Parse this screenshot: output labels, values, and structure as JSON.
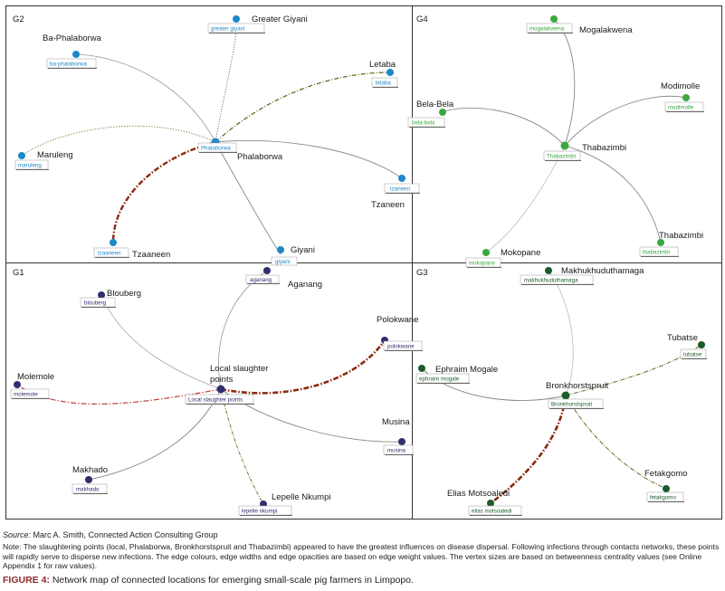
{
  "figure": {
    "quadrants": [
      {
        "id": "G2",
        "label": "G2"
      },
      {
        "id": "G4",
        "label": "G4"
      },
      {
        "id": "G1",
        "label": "G1"
      },
      {
        "id": "G3",
        "label": "G3"
      }
    ],
    "colors": {
      "g2_node": "#1e88c8",
      "g4_node": "#3aa840",
      "g1_node": "#2f2f6e",
      "g3_node": "#1c5c2c",
      "edge_gray": "#8a8a8a",
      "edge_brown": "#8b2a10",
      "edge_olive": "#6a6a20",
      "edge_red": "#c04040",
      "frame": "#333333"
    },
    "nodes": {
      "G2": [
        {
          "name": "Greater Giyani",
          "tag": "greater giyani"
        },
        {
          "name": "Ba-Phalaborwa",
          "tag": "ba-phalaborwa"
        },
        {
          "name": "Letaba",
          "tag": "letaba"
        },
        {
          "name": "Maruleng",
          "tag": "maruleng"
        },
        {
          "name": "Phalaborwa",
          "tag": "Phalaborwa"
        },
        {
          "name": "Tzaneen",
          "tag": "tzaneen"
        },
        {
          "name": "Tzaaneen",
          "tag": "tzaaneen"
        },
        {
          "name": "Giyani",
          "tag": "giyani"
        }
      ],
      "G4": [
        {
          "name": "Mogalakwena",
          "tag": "mogalakwena"
        },
        {
          "name": "Modimolle",
          "tag": "modimolle"
        },
        {
          "name": "Bela-Bela",
          "tag": "bela-bela"
        },
        {
          "name": "Thabazimbi",
          "tag": "Thabazimbi"
        },
        {
          "name": "Thabazimbi",
          "tag": "thabazimbi"
        },
        {
          "name": "Mokopane",
          "tag": "mokopane"
        }
      ],
      "G1": [
        {
          "name": "Aganang",
          "tag": "aganang"
        },
        {
          "name": "Blouberg",
          "tag": "blouberg"
        },
        {
          "name": "Polokwane",
          "tag": "polokwane"
        },
        {
          "name": "Local slaughter",
          "name2": "points",
          "tag": "Local slaughter points"
        },
        {
          "name": "Molemole",
          "tag": "molemole"
        },
        {
          "name": "Musina",
          "tag": "musina"
        },
        {
          "name": "Makhado",
          "tag": "makhado"
        },
        {
          "name": "Lepelle Nkumpi",
          "tag": "lepelle nkumpi"
        }
      ],
      "G3": [
        {
          "name": "Makhukhuduthamaga",
          "tag": "makhukhuduthamaga"
        },
        {
          "name": "Tubatse",
          "tag": "tubatse"
        },
        {
          "name": "Ephraim Mogale",
          "tag": "ephraim mogale"
        },
        {
          "name": "Bronkhorstspruit",
          "tag": "Bronkhorstspruit"
        },
        {
          "name": "Fetakgomo",
          "tag": "fetakgomo"
        },
        {
          "name": "Elias Motsoaledi",
          "tag": "elias motsoaledi"
        }
      ]
    }
  },
  "caption": {
    "source_label": "Source:",
    "source_text": "Marc A. Smith, Connected Action Consulting Group",
    "note": "Note: The slaughtering points (local, Phalaborwa, Bronkhorstspruit and Thabazimbi) appeared to have the greatest influences on disease dispersal. Following infections through contacts networks, these points will rapidly serve to disperse new infections. The edge colours, edge widths and edge opacities are based on edge weight values. The vertex sizes are based on betweenness centrality values (see Online Appendix 1 for raw values).",
    "figure_label": "FIGURE 4:",
    "figure_title": "Network map of connected locations for emerging small-scale pig farmers in Limpopo."
  }
}
